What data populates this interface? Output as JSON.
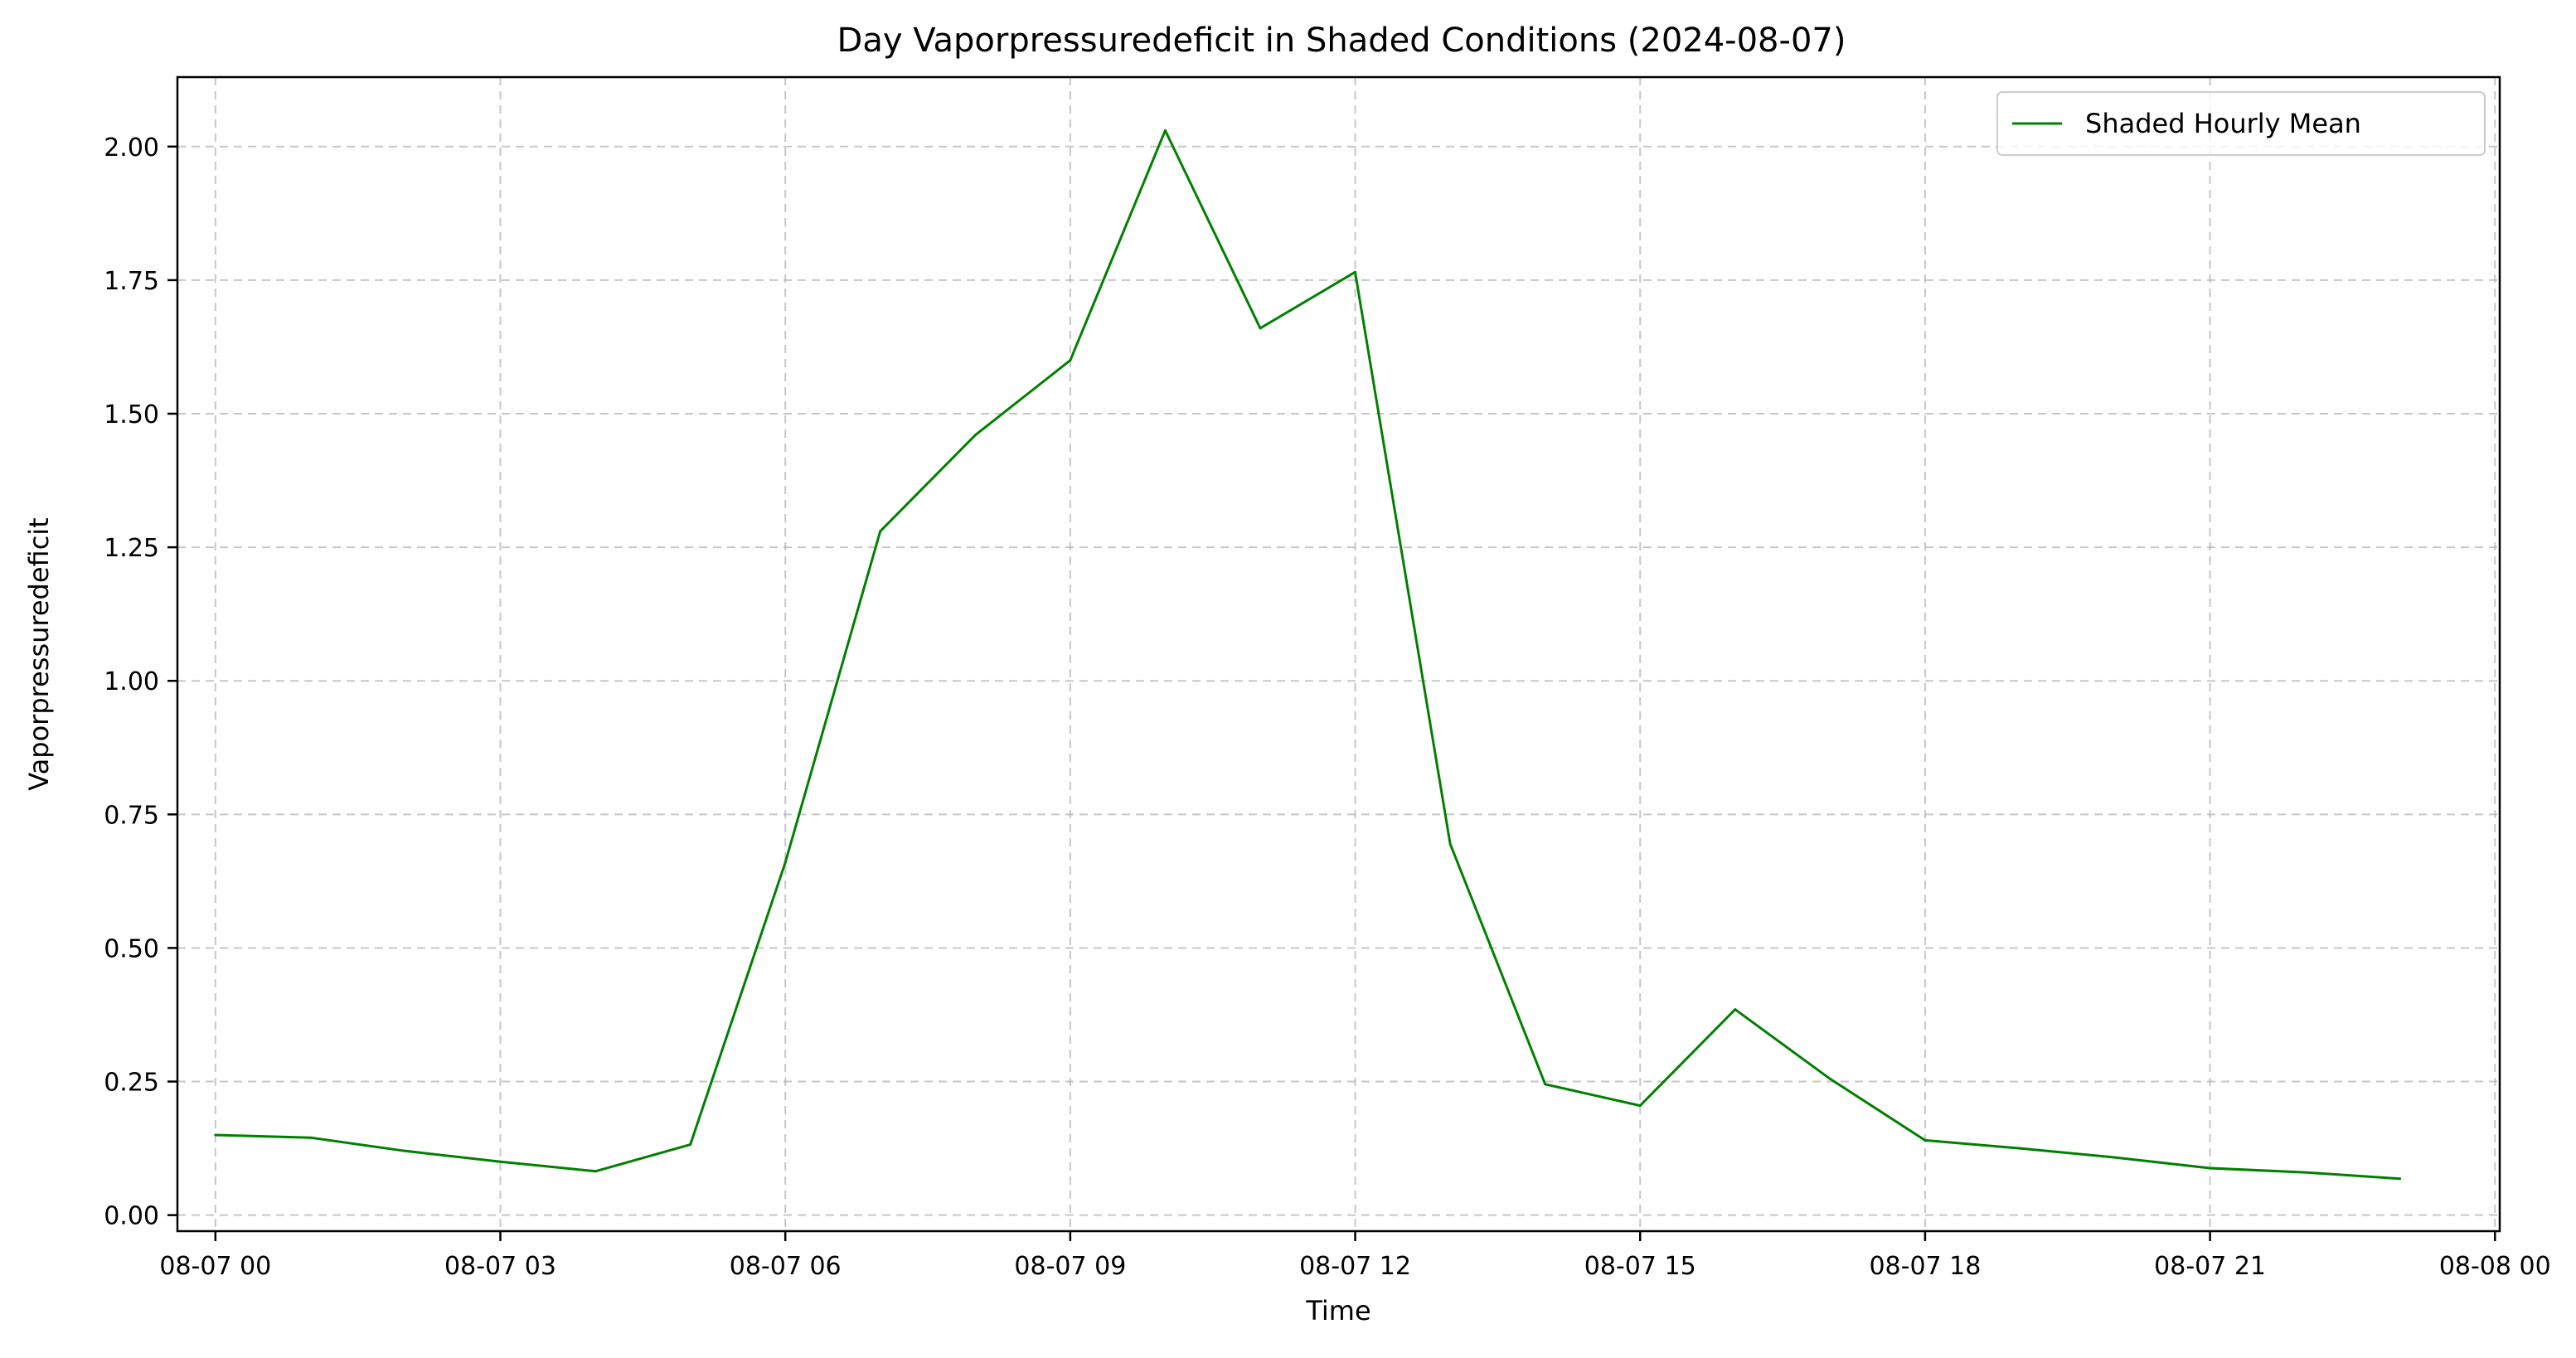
{
  "chart_data": {
    "type": "line",
    "title": "Day Vaporpressuredeficit in Shaded Conditions (2024-08-07)",
    "xlabel": "Time",
    "ylabel": "Vaporpressuredeficit",
    "xlim": [
      -0.4,
      24.05
    ],
    "ylim": [
      -0.03,
      2.13
    ],
    "x_ticks": [
      {
        "value": 0,
        "label": "08-07 00"
      },
      {
        "value": 3,
        "label": "08-07 03"
      },
      {
        "value": 6,
        "label": "08-07 06"
      },
      {
        "value": 9,
        "label": "08-07 09"
      },
      {
        "value": 12,
        "label": "08-07 12"
      },
      {
        "value": 15,
        "label": "08-07 15"
      },
      {
        "value": 18,
        "label": "08-07 18"
      },
      {
        "value": 21,
        "label": "08-07 21"
      },
      {
        "value": 24,
        "label": "08-08 00"
      }
    ],
    "y_ticks": [
      {
        "value": 0.0,
        "label": "0.00"
      },
      {
        "value": 0.25,
        "label": "0.25"
      },
      {
        "value": 0.5,
        "label": "0.50"
      },
      {
        "value": 0.75,
        "label": "0.75"
      },
      {
        "value": 1.0,
        "label": "1.00"
      },
      {
        "value": 1.25,
        "label": "1.25"
      },
      {
        "value": 1.5,
        "label": "1.50"
      },
      {
        "value": 1.75,
        "label": "1.75"
      },
      {
        "value": 2.0,
        "label": "2.00"
      }
    ],
    "grid": true,
    "legend_position": "top-right",
    "series": [
      {
        "name": "Shaded Hourly Mean",
        "color": "#008000",
        "x": [
          0,
          1,
          2,
          3,
          4,
          5,
          6,
          7,
          8,
          9,
          10,
          11,
          12,
          13,
          14,
          15,
          16,
          17,
          18,
          19,
          20,
          21,
          22,
          23
        ],
        "y": [
          0.15,
          0.145,
          0.12,
          0.1,
          0.082,
          0.132,
          0.66,
          1.28,
          1.46,
          1.6,
          2.03,
          1.66,
          1.765,
          0.695,
          0.245,
          0.205,
          0.385,
          0.255,
          0.14,
          0.125,
          0.108,
          0.088,
          0.08,
          0.068
        ]
      }
    ]
  }
}
